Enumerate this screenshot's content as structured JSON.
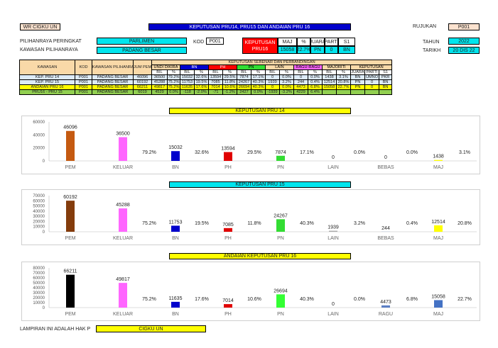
{
  "header": {
    "tag": "WR CIGKU UN",
    "title": "KEPUTUSAN PRU14, PRU15 DAN ANDAIAN PRU 16",
    "rujukan_label": "RUJUKAN",
    "rujukan_value": "P001",
    "tahun_label": "TAHUN",
    "tahun_value": "2022",
    "tarikh_label": "TARIKH",
    "tarikh_value": "20 DIS 22"
  },
  "selection": {
    "level_label": "PILIHANRAYA PERINGKAT",
    "level_value": "PARLIMEN",
    "area_label": "KAWASAN PILIHANRAYA",
    "area_value": "PADANG BESAR",
    "kod_label": "KOD",
    "kod_value": "P001"
  },
  "summary": {
    "title_line1": "KEPUTUSAN",
    "title_line2": "PRU16",
    "headers": [
      "MAJ",
      "%",
      "JUARA",
      "PARTI",
      "S1"
    ],
    "values": [
      "15058",
      "22.7%",
      "PN",
      "0",
      "BN"
    ]
  },
  "table": {
    "group_header": "KEPUTUSAN SEBENAR DAN PERBANDINGAN",
    "col_kawasan": "KAWASAN",
    "col_kod": "KOD",
    "col_kawasan2": "KAWASAN PILIHANRAYA",
    "col_jum": "JUM PEM",
    "groups": [
      "UNDI DIKIRA",
      "BN",
      "PH",
      "PN",
      "LAIN",
      "RAGU-RAGU",
      "MAJORITI",
      "KEPUTUSAN"
    ],
    "sub": [
      "BIL",
      "%",
      "BIL",
      "%",
      "BIL",
      "%",
      "BIL",
      "%",
      "BIL",
      "%",
      "BIL",
      "%",
      "BIL",
      "%",
      "JUARA",
      "PARTI",
      "S1"
    ],
    "rows": [
      [
        "KEP. PRU 14",
        "P001",
        "PADANG BESAR",
        "46096",
        "36500",
        "79.2%",
        "15032",
        "32.6%",
        "13594",
        "29.5%",
        "7874",
        "17.1%",
        "0",
        "0.0%",
        "0",
        "0.0%",
        "1438",
        "3.1%",
        "BN",
        "UMNO",
        "PKR"
      ],
      [
        "KEP. PRU 15",
        "P001",
        "PADANG BESAR",
        "60192",
        "45288",
        "75.2%",
        "11753",
        "19.5%",
        "7085",
        "11.8%",
        "24267",
        "40.3%",
        "1939",
        "3.2%",
        "244",
        "0.4%",
        "12514",
        "20.8%",
        "PN",
        "0",
        "BN"
      ],
      [
        "ANDAIAN PRU 16",
        "P001",
        "PADANG BESAR",
        "66211",
        "49817",
        "75.2%",
        "11635",
        "17.6%",
        "7014",
        "10.6%",
        "26694",
        "40.3%",
        "0",
        "0.0%",
        "4473",
        "6.8%",
        "15058",
        "22.7%",
        "PN",
        "0",
        "BN"
      ],
      [
        "PRU16 - PRU 15",
        "P001",
        "PADANG BESAR",
        "6019",
        "4529",
        "0.0%",
        "-118",
        "-2.0%",
        "-71",
        "-1.2%",
        "2427",
        "0.0%",
        "-1939",
        "-3.2%",
        "4229",
        "6.4%",
        "",
        "",
        "",
        "",
        ""
      ]
    ]
  },
  "chart_data": [
    {
      "type": "bar",
      "title": "KEPUTUSAN PRU 14",
      "categories": [
        "PEM",
        "KELUAR",
        "BN",
        "PH",
        "PN",
        "LAIN",
        "BEBAS",
        "MAJ"
      ],
      "values": [
        46096,
        36500,
        15032,
        13594,
        7874,
        0,
        0,
        1438
      ],
      "percents": [
        "",
        "79.2%",
        "32.6%",
        "29.5%",
        "17.1%",
        "0.0%",
        "0.0%",
        "3.1%"
      ],
      "value_labels": [
        "46096",
        "36500",
        "15032",
        "13594",
        "7874",
        "0",
        "0",
        "1438"
      ],
      "colors": [
        "#c55a11",
        "#ff66ff",
        "#0000cc",
        "#e00000",
        "#33dd33",
        "#888888",
        "#5b7fc4",
        "#ffff00"
      ],
      "yticks": [
        "60000",
        "40000",
        "20000",
        "0"
      ],
      "ylim": [
        0,
        60000
      ]
    },
    {
      "type": "bar",
      "title": "KEPUTUSAN PRU 15",
      "categories": [
        "PEM",
        "KELUAR",
        "BN",
        "PH",
        "PN",
        "LAIN",
        "BEBAS",
        "MAJ"
      ],
      "values": [
        60192,
        45288,
        11753,
        7085,
        24267,
        1939,
        244,
        12514
      ],
      "percents": [
        "",
        "75.2%",
        "19.5%",
        "11.8%",
        "40.3%",
        "3.2%",
        "0.4%",
        "20.8%"
      ],
      "value_labels": [
        "60192",
        "45288",
        "11753",
        "7085",
        "24267",
        "1939",
        "244",
        "12514"
      ],
      "colors": [
        "#843c0c",
        "#ff66ff",
        "#0000cc",
        "#e00000",
        "#33dd33",
        "#aaaaaa",
        "#7f9fd0",
        "#ffff00"
      ],
      "yticks": [
        "70000",
        "60000",
        "50000",
        "40000",
        "30000",
        "20000",
        "10000",
        "0"
      ],
      "ylim": [
        0,
        70000
      ]
    },
    {
      "type": "bar",
      "title": "ANDAIAN KEPUTUSAN PRU 16",
      "categories": [
        "PEM",
        "KELUAR",
        "BN",
        "PH",
        "PN",
        "LAIN",
        "RAGU",
        "MAJ"
      ],
      "values": [
        66211,
        49817,
        11635,
        7014,
        26694,
        0,
        4473,
        15058
      ],
      "percents": [
        "",
        "75.2%",
        "17.6%",
        "10.6%",
        "40.3%",
        "0.0%",
        "6.8%",
        "22.7%"
      ],
      "value_labels": [
        "66211",
        "49817",
        "11635",
        "7014",
        "26694",
        "0",
        "4473",
        "15058"
      ],
      "colors": [
        "#000000",
        "#ff66ff",
        "#0000cc",
        "#e00000",
        "#33ff33",
        "#888888",
        "#5b7fc4",
        "#4472c4"
      ],
      "yticks": [
        "80000",
        "70000",
        "60000",
        "50000",
        "40000",
        "30000",
        "20000",
        "10000",
        "0"
      ],
      "ylim": [
        0,
        80000
      ]
    }
  ],
  "footer": {
    "label": "LAMPIRAN INI ADALAH HAK P",
    "value": "CIGKU UN"
  },
  "colors": {
    "title_bar": "#0000cc",
    "cyan": "#00e5ee",
    "red": "#ff0000",
    "yellow": "#ffff00",
    "tag_bg": "#fbe2cf"
  }
}
